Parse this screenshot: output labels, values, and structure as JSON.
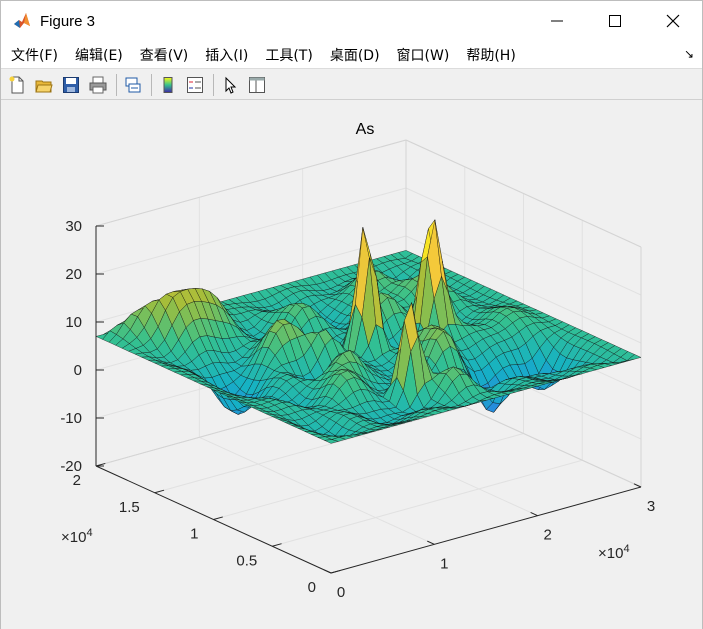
{
  "window": {
    "title": "Figure 3",
    "controls": {
      "minimize": "minimize-icon",
      "maximize": "maximize-icon",
      "close": "close-icon"
    }
  },
  "menu": {
    "items": [
      "文件(F)",
      "编辑(E)",
      "查看(V)",
      "插入(I)",
      "工具(T)",
      "桌面(D)",
      "窗口(W)",
      "帮助(H)"
    ]
  },
  "toolbar": {
    "buttons": [
      "new-figure-icon",
      "open-file-icon",
      "save-icon",
      "print-icon",
      "link-plot-icon",
      "colorbar-icon",
      "legend-icon",
      "pointer-icon",
      "property-editor-icon"
    ]
  },
  "chart_data": {
    "type": "surface",
    "title": "As",
    "zlim": [
      -20,
      30
    ],
    "zticks": [
      "-20",
      "-10",
      "0",
      "10",
      "20",
      "30"
    ],
    "xticks": [
      "0",
      "1",
      "2",
      "3"
    ],
    "xlim": [
      0,
      30000
    ],
    "yticks": [
      "0",
      "0.5",
      "1",
      "1.5",
      "2"
    ],
    "ylim": [
      0,
      20000
    ],
    "x_exponent": "×10",
    "y_exponent": "×10",
    "exponent_power": "4",
    "colormap": [
      "#3e26a8",
      "#2e7de6",
      "#15b1c5",
      "#35c18e",
      "#a3bd3a",
      "#f6c93a",
      "#f9fb15"
    ],
    "grid": true
  }
}
